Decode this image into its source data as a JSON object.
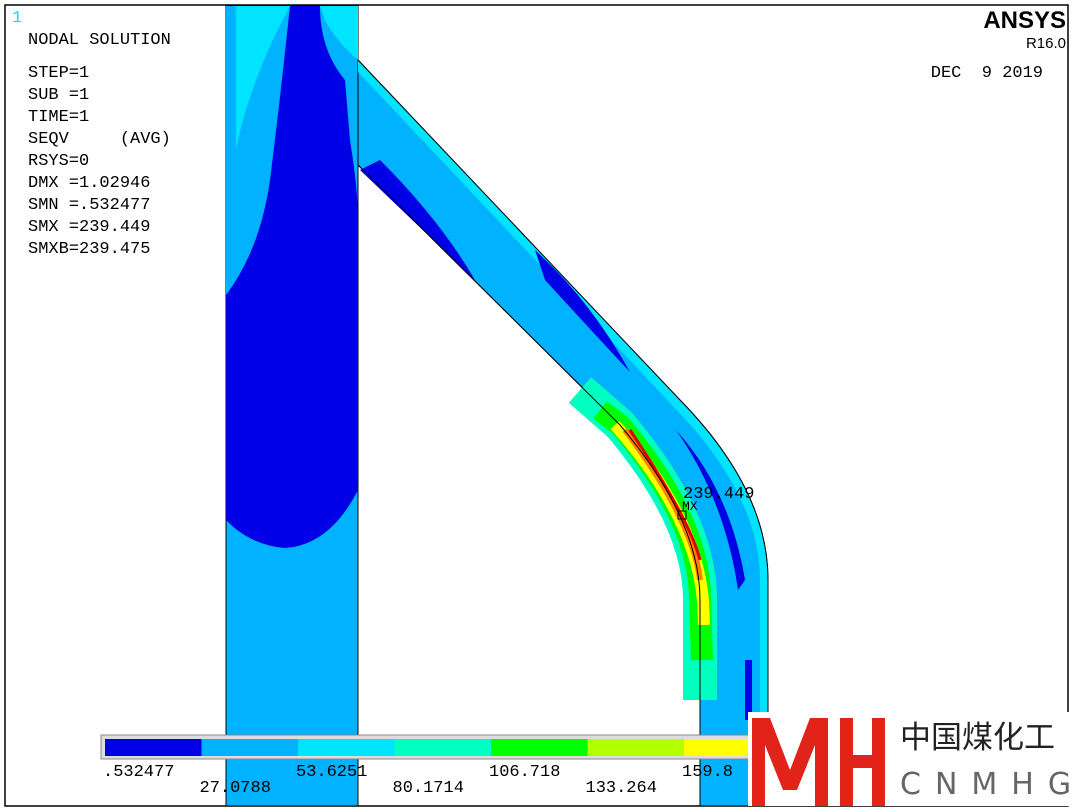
{
  "header": {
    "window": "1",
    "title": "NODAL SOLUTION",
    "info": [
      "STEP=1",
      "SUB =1",
      "TIME=1",
      "SEQV     (AVG)",
      "RSYS=0",
      "DMX =1.02946",
      "SMN =.532477",
      "SMX =239.449",
      "SMXB=239.475"
    ],
    "brand": "ANSYS",
    "version": "R16.0",
    "date": "DEC  9 2019"
  },
  "annotation": {
    "value": "239.449",
    "marker": "MX"
  },
  "legend": {
    "labels": [
      ".532477",
      "27.0788",
      "53.6251",
      "80.1714",
      "106.718",
      "133.264",
      "159.8"
    ],
    "colors": [
      "#0000e6",
      "#00b2ff",
      "#00e4ff",
      "#00ffc0",
      "#00ff00",
      "#b4ff00",
      "#ffff00"
    ]
  },
  "logo": {
    "chinese": "中国煤化工",
    "latin": "CNMHG"
  }
}
